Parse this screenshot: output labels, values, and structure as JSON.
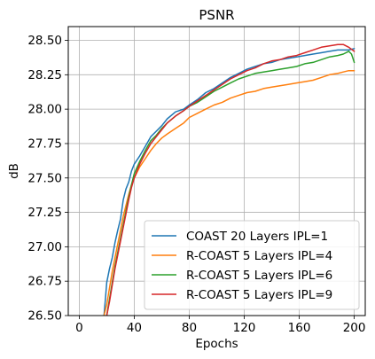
{
  "chart_data": {
    "type": "line",
    "title": "PSNR",
    "xlabel": "Epochs",
    "ylabel": "dB",
    "xlim": [
      -8,
      208
    ],
    "ylim": [
      26.5,
      28.6
    ],
    "xticks": [
      0,
      40,
      80,
      120,
      160,
      200
    ],
    "yticks": [
      26.5,
      26.75,
      27.0,
      27.25,
      27.5,
      27.75,
      28.0,
      28.25,
      28.5
    ],
    "ytick_labels": [
      "26.50",
      "26.75",
      "27.00",
      "27.25",
      "27.50",
      "27.75",
      "28.00",
      "28.25",
      "28.50"
    ],
    "grid": true,
    "legend_position": "lower-right",
    "series": [
      {
        "name": "COAST 20 Layers IPL=1",
        "color": "#1f77b4",
        "points": [
          [
            18,
            26.5
          ],
          [
            19,
            26.62
          ],
          [
            20,
            26.74
          ],
          [
            22,
            26.84
          ],
          [
            24,
            26.92
          ],
          [
            26,
            27.03
          ],
          [
            28,
            27.12
          ],
          [
            30,
            27.2
          ],
          [
            32,
            27.34
          ],
          [
            34,
            27.42
          ],
          [
            36,
            27.47
          ],
          [
            38,
            27.55
          ],
          [
            40,
            27.6
          ],
          [
            44,
            27.66
          ],
          [
            48,
            27.73
          ],
          [
            52,
            27.8
          ],
          [
            56,
            27.84
          ],
          [
            60,
            27.88
          ],
          [
            64,
            27.93
          ],
          [
            70,
            27.98
          ],
          [
            76,
            28.0
          ],
          [
            80,
            28.03
          ],
          [
            86,
            28.07
          ],
          [
            92,
            28.12
          ],
          [
            98,
            28.15
          ],
          [
            104,
            28.19
          ],
          [
            110,
            28.23
          ],
          [
            116,
            28.26
          ],
          [
            122,
            28.29
          ],
          [
            128,
            28.31
          ],
          [
            134,
            28.33
          ],
          [
            140,
            28.34
          ],
          [
            146,
            28.36
          ],
          [
            152,
            28.37
          ],
          [
            158,
            28.38
          ],
          [
            164,
            28.39
          ],
          [
            170,
            28.4
          ],
          [
            176,
            28.41
          ],
          [
            182,
            28.42
          ],
          [
            188,
            28.43
          ],
          [
            192,
            28.43
          ],
          [
            196,
            28.43
          ],
          [
            200,
            28.44
          ]
        ]
      },
      {
        "name": "R-COAST 5 Layers IPL=4",
        "color": "#ff7f0e",
        "points": [
          [
            18,
            26.5
          ],
          [
            20,
            26.58
          ],
          [
            22,
            26.7
          ],
          [
            24,
            26.82
          ],
          [
            26,
            26.92
          ],
          [
            28,
            27.02
          ],
          [
            30,
            27.12
          ],
          [
            32,
            27.22
          ],
          [
            34,
            27.3
          ],
          [
            36,
            27.38
          ],
          [
            38,
            27.45
          ],
          [
            40,
            27.5
          ],
          [
            44,
            27.58
          ],
          [
            48,
            27.64
          ],
          [
            52,
            27.7
          ],
          [
            56,
            27.75
          ],
          [
            60,
            27.79
          ],
          [
            64,
            27.82
          ],
          [
            70,
            27.86
          ],
          [
            76,
            27.9
          ],
          [
            80,
            27.94
          ],
          [
            86,
            27.97
          ],
          [
            92,
            28.0
          ],
          [
            98,
            28.03
          ],
          [
            104,
            28.05
          ],
          [
            110,
            28.08
          ],
          [
            116,
            28.1
          ],
          [
            122,
            28.12
          ],
          [
            128,
            28.13
          ],
          [
            134,
            28.15
          ],
          [
            140,
            28.16
          ],
          [
            146,
            28.17
          ],
          [
            152,
            28.18
          ],
          [
            158,
            28.19
          ],
          [
            164,
            28.2
          ],
          [
            170,
            28.21
          ],
          [
            176,
            28.23
          ],
          [
            182,
            28.25
          ],
          [
            188,
            28.26
          ],
          [
            192,
            28.27
          ],
          [
            196,
            28.28
          ],
          [
            200,
            28.28
          ]
        ]
      },
      {
        "name": "R-COAST 5 Layers IPL=6",
        "color": "#2ca02c",
        "points": [
          [
            20,
            26.5
          ],
          [
            22,
            26.62
          ],
          [
            24,
            26.74
          ],
          [
            26,
            26.86
          ],
          [
            28,
            26.96
          ],
          [
            30,
            27.06
          ],
          [
            32,
            27.16
          ],
          [
            34,
            27.26
          ],
          [
            36,
            27.36
          ],
          [
            38,
            27.45
          ],
          [
            40,
            27.53
          ],
          [
            44,
            27.62
          ],
          [
            48,
            27.7
          ],
          [
            52,
            27.77
          ],
          [
            56,
            27.81
          ],
          [
            60,
            27.86
          ],
          [
            64,
            27.9
          ],
          [
            70,
            27.95
          ],
          [
            76,
            27.99
          ],
          [
            80,
            28.02
          ],
          [
            86,
            28.05
          ],
          [
            92,
            28.09
          ],
          [
            98,
            28.13
          ],
          [
            104,
            28.16
          ],
          [
            110,
            28.19
          ],
          [
            116,
            28.22
          ],
          [
            122,
            28.24
          ],
          [
            128,
            28.26
          ],
          [
            134,
            28.27
          ],
          [
            140,
            28.28
          ],
          [
            146,
            28.29
          ],
          [
            152,
            28.3
          ],
          [
            158,
            28.31
          ],
          [
            164,
            28.33
          ],
          [
            170,
            28.34
          ],
          [
            176,
            28.36
          ],
          [
            182,
            28.38
          ],
          [
            188,
            28.39
          ],
          [
            192,
            28.4
          ],
          [
            196,
            28.42
          ],
          [
            198,
            28.4
          ],
          [
            200,
            28.34
          ]
        ]
      },
      {
        "name": "R-COAST 5 Layers IPL=9",
        "color": "#d62728",
        "points": [
          [
            20,
            26.5
          ],
          [
            22,
            26.6
          ],
          [
            24,
            26.72
          ],
          [
            26,
            26.84
          ],
          [
            28,
            26.94
          ],
          [
            30,
            27.04
          ],
          [
            32,
            27.14
          ],
          [
            34,
            27.24
          ],
          [
            36,
            27.34
          ],
          [
            38,
            27.43
          ],
          [
            40,
            27.5
          ],
          [
            44,
            27.6
          ],
          [
            48,
            27.68
          ],
          [
            52,
            27.75
          ],
          [
            56,
            27.8
          ],
          [
            60,
            27.85
          ],
          [
            64,
            27.9
          ],
          [
            70,
            27.95
          ],
          [
            76,
            27.99
          ],
          [
            80,
            28.02
          ],
          [
            86,
            28.06
          ],
          [
            92,
            28.1
          ],
          [
            98,
            28.14
          ],
          [
            104,
            28.18
          ],
          [
            110,
            28.22
          ],
          [
            116,
            28.25
          ],
          [
            122,
            28.28
          ],
          [
            128,
            28.3
          ],
          [
            134,
            28.33
          ],
          [
            140,
            28.35
          ],
          [
            146,
            28.36
          ],
          [
            152,
            28.38
          ],
          [
            158,
            28.39
          ],
          [
            164,
            28.41
          ],
          [
            170,
            28.43
          ],
          [
            176,
            28.45
          ],
          [
            182,
            28.46
          ],
          [
            188,
            28.47
          ],
          [
            192,
            28.47
          ],
          [
            196,
            28.45
          ],
          [
            200,
            28.42
          ]
        ]
      }
    ]
  }
}
